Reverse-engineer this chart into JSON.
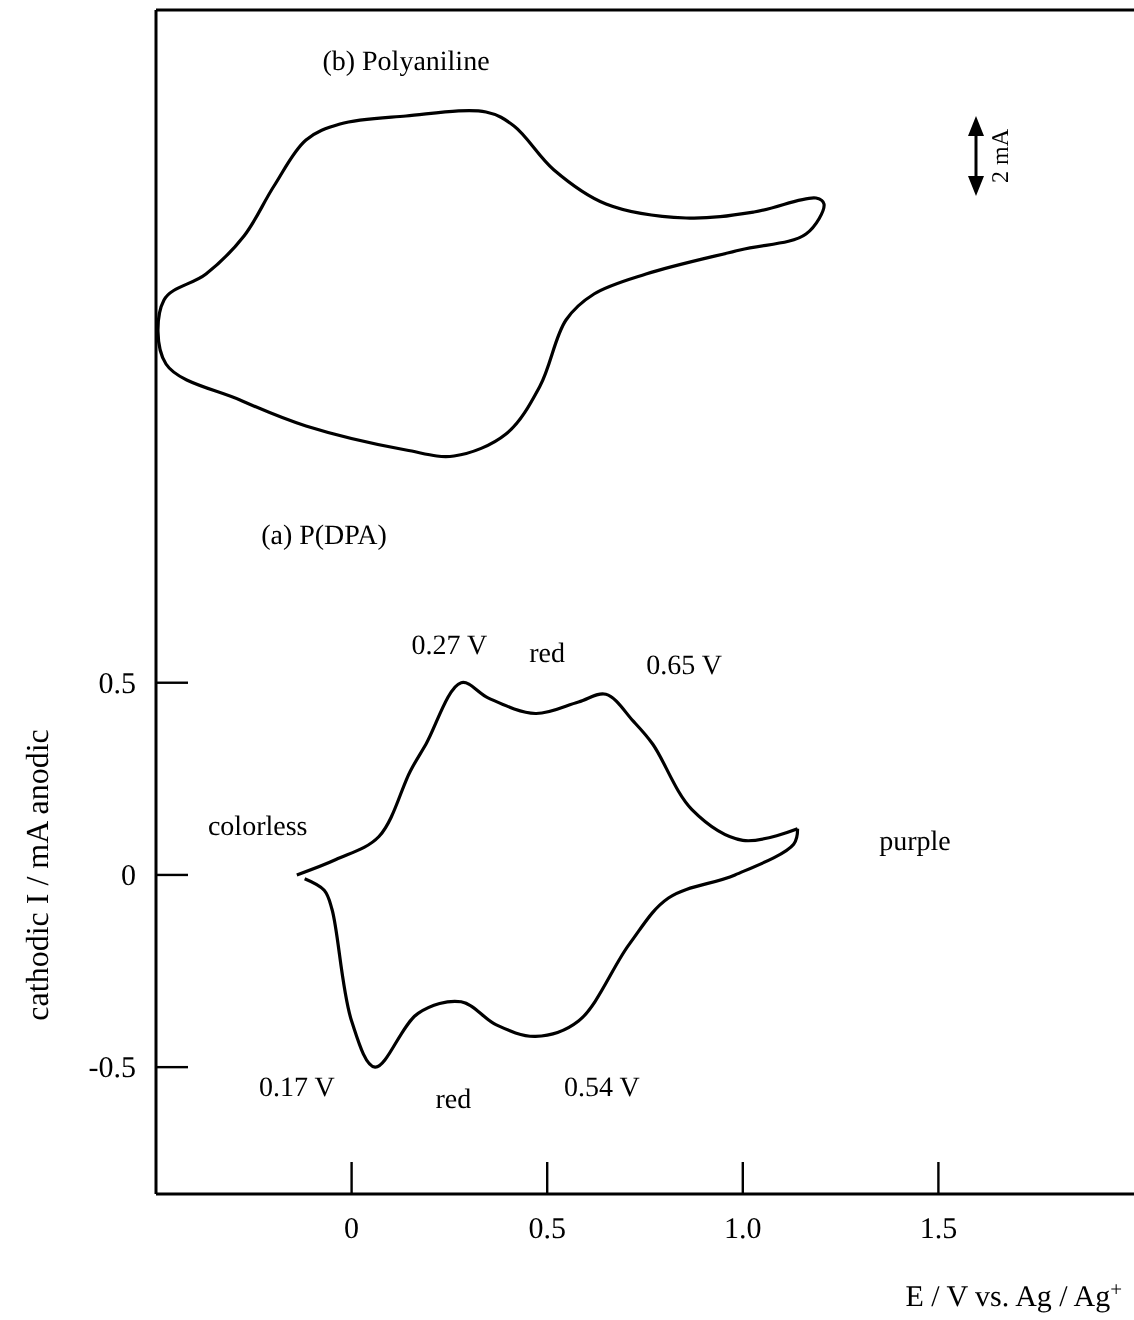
{
  "chart_data": [
    {
      "type": "other",
      "title": "(b) Polyaniline",
      "annotations": [
        "2 mA"
      ]
    },
    {
      "type": "line",
      "title": "(a) P(DPA)",
      "xlabel": "E / V  vs.  Ag / Ag$^{+}$",
      "ylabel": "cathodic  I / mA  anodic",
      "xlim": [
        -0.5,
        2.0
      ],
      "ylim": [
        -0.83,
        2.25
      ],
      "xticks": [
        0,
        0.5,
        {
          "value": 1,
          "label": "1.0"
        },
        1.5
      ],
      "yticks": [
        0.5,
        0,
        -0.5
      ],
      "annotations": [
        "0.27 V",
        "red",
        "0.65 V",
        "colorless",
        "purple",
        "0.17 V",
        "red",
        "0.54 V"
      ],
      "series": [
        {
          "color": "#000000",
          "x": [
            -0.14,
            -0.04,
            0.07,
            0.15,
            0.19,
            0.28,
            0.35,
            0.47,
            0.58,
            0.65,
            0.72,
            0.77,
            0.87,
            1.0,
            1.14
          ],
          "values": [
            0.0,
            0.04,
            0.1,
            0.27,
            0.34,
            0.5,
            0.46,
            0.42,
            0.45,
            0.47,
            0.4,
            0.34,
            0.17,
            0.09,
            0.12
          ]
        },
        {
          "color": "#000000",
          "x": [
            1.14,
            1.13,
            0.98,
            0.81,
            0.71,
            0.58,
            0.47,
            0.37,
            0.28,
            0.17,
            0.06,
            0.0,
            -0.05,
            -0.07,
            -0.12
          ],
          "values": [
            0.12,
            0.08,
            0.0,
            -0.06,
            -0.18,
            -0.38,
            -0.42,
            -0.39,
            -0.33,
            -0.36,
            -0.5,
            -0.38,
            -0.09,
            -0.04,
            -0.01
          ]
        }
      ]
    }
  ]
}
